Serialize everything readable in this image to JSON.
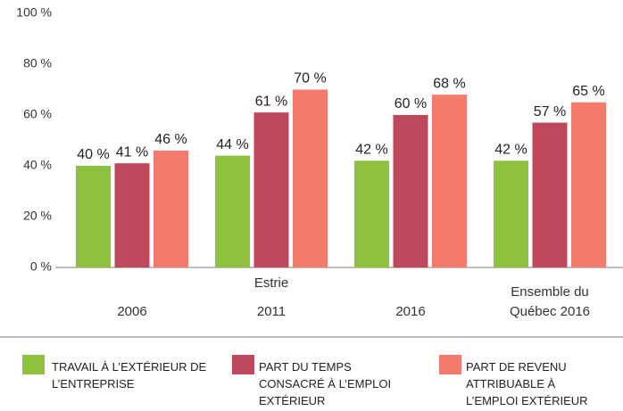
{
  "chart_data": {
    "type": "bar",
    "categories": [
      "2006",
      "2011",
      "2016",
      "Ensemble du Québec 2016"
    ],
    "group_label": "Estrie",
    "series": [
      {
        "name": "TRAVAIL À L’EXTÉRIEUR DE L’ENTREPRISE",
        "color": "#8dc13f",
        "values": [
          40,
          44,
          42,
          42
        ],
        "value_labels": [
          "40 %",
          "44 %",
          "42 %",
          "42 %"
        ]
      },
      {
        "name": "PART DU TEMPS CONSACRÉ À L’EMPLOI EXTÉRIEUR",
        "color": "#c0485c",
        "values": [
          41,
          61,
          60,
          57
        ],
        "value_labels": [
          "41 %",
          "61 %",
          "60 %",
          "57 %"
        ]
      },
      {
        "name": "PART DE REVENU ATTRIBUABLE À L’EMPLOI EXTÉRIEUR",
        "color": "#f47a6c",
        "values": [
          46,
          70,
          68,
          65
        ],
        "value_labels": [
          "46 %",
          "70 %",
          "68 %",
          "65 %"
        ]
      }
    ],
    "ylim": [
      0,
      100
    ],
    "yticks": [
      {
        "value": 0,
        "label": "0 %"
      },
      {
        "value": 20,
        "label": "20 %"
      },
      {
        "value": 40,
        "label": "40 %"
      },
      {
        "value": 60,
        "label": "60 %"
      },
      {
        "value": 80,
        "label": "80 %"
      },
      {
        "value": 100,
        "label": "100 %"
      }
    ],
    "grid": false
  }
}
